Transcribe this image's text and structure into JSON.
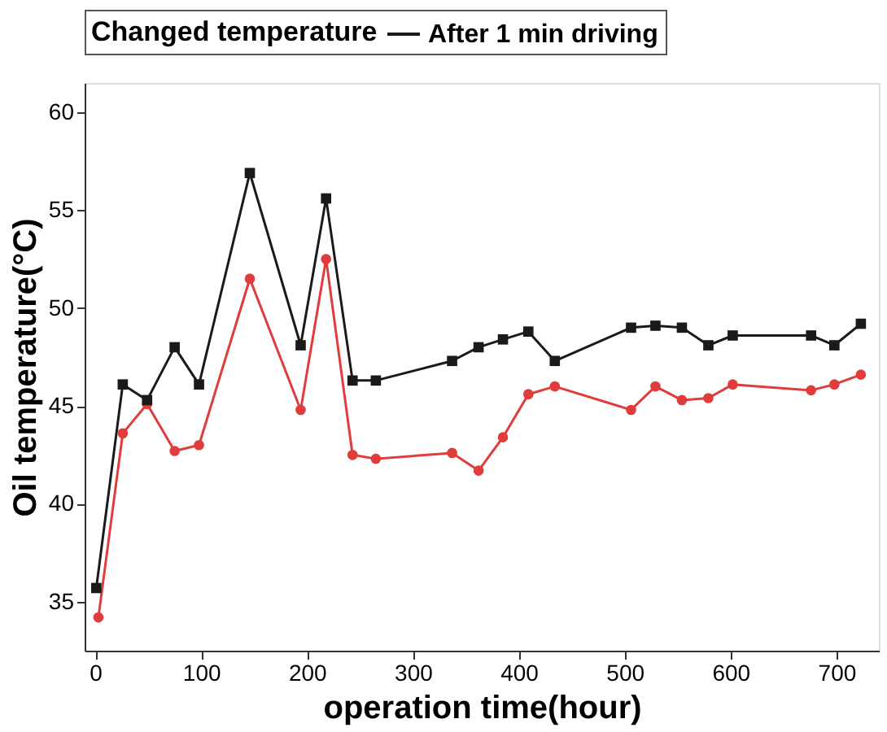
{
  "chart_data": {
    "type": "line",
    "xlabel": "operation time(hour)",
    "ylabel": "Oil temperature(°C)",
    "legend_title": "Changed temperature",
    "xlim": [
      -10,
      740
    ],
    "ylim": [
      32.5,
      61.5
    ],
    "xticks": [
      0,
      100,
      200,
      300,
      400,
      500,
      600,
      700
    ],
    "yticks": [
      35,
      40,
      45,
      50,
      55,
      60
    ],
    "grid": false,
    "legend": "top",
    "line_style": "solid",
    "series": [
      {
        "name": "After 1 min driving",
        "color": "#1a1a1a",
        "marker": "square",
        "x": [
          1,
          26,
          49,
          75,
          98,
          146,
          194,
          218,
          243,
          265,
          337,
          362,
          385,
          409,
          434,
          506,
          529,
          554,
          579,
          602,
          676,
          698,
          723
        ],
        "values": [
          35.7,
          46.1,
          45.3,
          48.0,
          46.1,
          56.9,
          48.1,
          55.6,
          46.3,
          46.3,
          47.3,
          48.0,
          48.4,
          48.8,
          47.3,
          49.0,
          49.1,
          49.0,
          48.1,
          48.6,
          48.6,
          48.1,
          49.2
        ]
      },
      {
        "color": "#e03c3c",
        "marker": "circle",
        "x": [
          3,
          26,
          49,
          75,
          98,
          146,
          194,
          218,
          243,
          265,
          337,
          362,
          385,
          409,
          434,
          506,
          529,
          554,
          579,
          602,
          676,
          698,
          723
        ],
        "values": [
          34.2,
          43.6,
          45.1,
          42.7,
          43.0,
          51.5,
          44.8,
          52.5,
          42.5,
          42.3,
          42.6,
          41.7,
          43.4,
          45.6,
          46.0,
          44.8,
          46.0,
          45.3,
          45.4,
          46.1,
          45.8,
          46.1,
          46.6
        ]
      }
    ]
  }
}
